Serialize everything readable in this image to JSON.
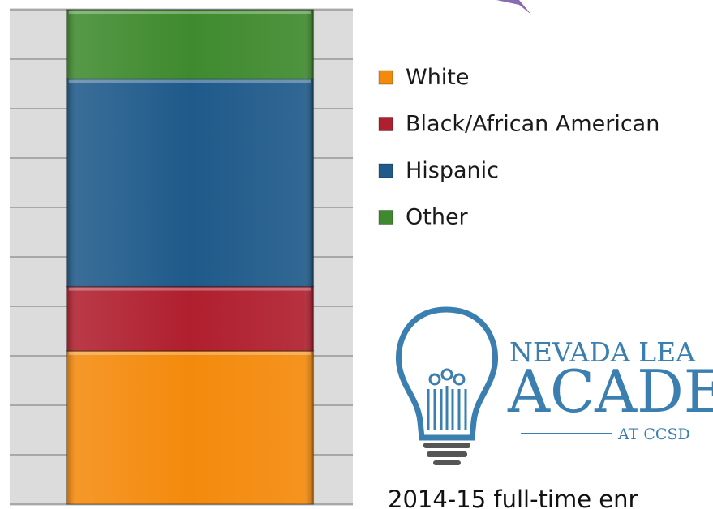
{
  "chart_data": {
    "type": "bar",
    "categories": [
      null
    ],
    "series": [
      {
        "name": "White",
        "color": "#f48a0c",
        "values": [
          31
        ]
      },
      {
        "name": "Black/African American",
        "color": "#b01f2e",
        "values": [
          13
        ]
      },
      {
        "name": "Hispanic",
        "color": "#1f5a8a",
        "values": [
          42
        ]
      },
      {
        "name": "Other",
        "color": "#3f8a2e",
        "values": [
          14
        ]
      }
    ],
    "stacked": true,
    "ylim": [
      0,
      100
    ],
    "yticks": [
      0,
      10,
      20,
      30,
      40,
      50,
      60,
      70,
      80,
      90,
      100
    ],
    "grid": true
  },
  "logo": {
    "line1": "NEVADA LEA",
    "line2": "ACADE",
    "line3": "AT CCSD"
  },
  "caption": "2014-15 full-time enr"
}
